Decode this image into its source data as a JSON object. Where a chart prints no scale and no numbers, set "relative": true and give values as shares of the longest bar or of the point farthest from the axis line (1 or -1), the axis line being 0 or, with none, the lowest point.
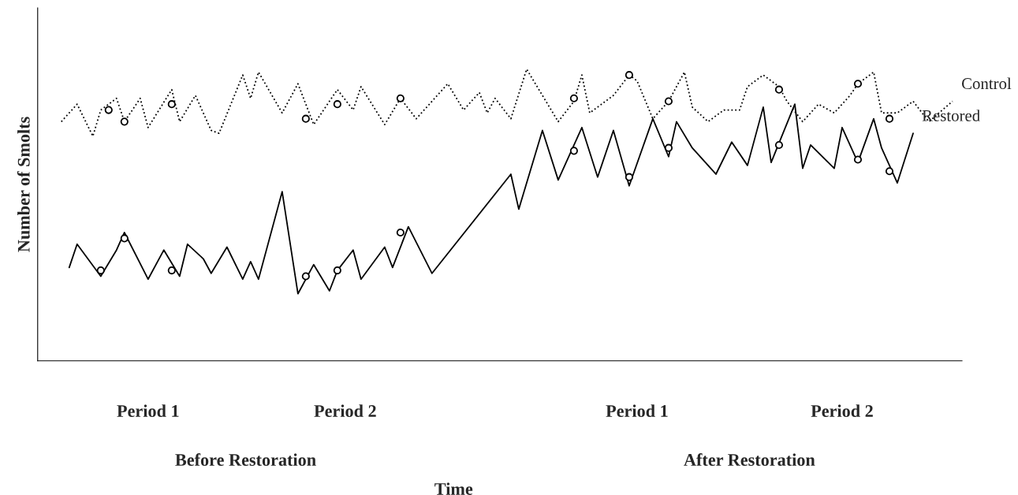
{
  "chart_data": {
    "type": "line",
    "relative": true,
    "xlabel": "Time",
    "ylabel": "Number of Smolts",
    "legend": false,
    "categories": [
      null,
      null,
      null,
      null,
      null,
      null,
      null,
      null,
      null,
      null,
      null,
      null,
      null,
      null,
      "Period 1",
      null,
      null,
      null,
      null,
      null,
      null,
      null,
      null,
      null,
      null,
      null,
      null,
      null,
      null,
      null,
      null,
      null,
      null,
      null,
      null,
      null,
      null,
      null,
      null,
      "Period 2",
      null,
      null,
      null,
      null,
      null,
      null,
      null,
      null,
      null,
      null,
      null,
      null,
      null,
      null,
      null,
      null,
      null,
      null,
      null,
      null,
      null,
      null,
      null,
      null,
      null,
      null,
      null,
      null,
      null,
      null,
      null,
      null,
      null,
      null,
      null,
      null,
      "Period 1",
      null,
      null,
      null,
      null,
      null,
      null,
      null,
      null,
      null,
      null,
      null,
      null,
      null,
      null,
      null,
      null,
      null,
      null,
      null,
      null,
      null,
      null,
      null,
      null,
      null,
      "Period 2",
      null,
      null,
      null,
      null,
      null,
      null,
      null,
      null,
      null,
      null,
      null,
      null,
      null,
      null,
      null
    ],
    "annotations": [
      "Before Restoration",
      "After Restoration"
    ],
    "series": [
      {
        "name": "Control",
        "color": "#000000",
        "line_style": "dotted",
        "marker": "none",
        "values": [
          null,
          null,
          null,
          0.82,
          null,
          0.88,
          null,
          0.77,
          0.86,
          null,
          0.9,
          0.82,
          null,
          0.9,
          0.8,
          null,
          null,
          0.93,
          0.82,
          null,
          0.91,
          null,
          0.79,
          0.78,
          null,
          null,
          0.98,
          0.9,
          0.99,
          null,
          null,
          0.85,
          null,
          0.95,
          null,
          0.81,
          null,
          null,
          0.93,
          null,
          0.86,
          0.94,
          null,
          null,
          0.81,
          null,
          0.9,
          null,
          0.83,
          null,
          null,
          null,
          0.95,
          null,
          0.86,
          null,
          0.92,
          0.85,
          0.9,
          null,
          0.83,
          null,
          1.0,
          null,
          0.91,
          null,
          0.82,
          null,
          0.89,
          0.98,
          0.85,
          null,
          null,
          0.91,
          null,
          0.98,
          0.96,
          null,
          0.83,
          null,
          0.89,
          null,
          0.99,
          0.87,
          null,
          0.82,
          null,
          0.86,
          null,
          0.86,
          0.94,
          null,
          0.98,
          null,
          0.94,
          0.89,
          null,
          0.82,
          null,
          0.88,
          null,
          0.85,
          null,
          0.91,
          0.95,
          null,
          0.99,
          0.85,
          null,
          0.85,
          null,
          0.89,
          null,
          0.82,
          null,
          null,
          0.89,
          null
        ]
      },
      {
        "name": "Restored",
        "color": "#000000",
        "line_style": "solid",
        "marker": "none",
        "values": [
          null,
          null,
          null,
          null,
          0.32,
          0.4,
          null,
          null,
          0.29,
          null,
          0.38,
          0.44,
          null,
          null,
          0.28,
          null,
          0.38,
          null,
          0.29,
          0.4,
          null,
          0.35,
          0.3,
          null,
          0.39,
          null,
          0.28,
          0.34,
          0.28,
          null,
          null,
          0.58,
          null,
          0.23,
          null,
          0.33,
          null,
          0.24,
          0.31,
          null,
          0.38,
          0.28,
          null,
          null,
          0.39,
          0.32,
          null,
          0.46,
          null,
          null,
          0.3,
          null,
          null,
          null,
          null,
          null,
          null,
          null,
          null,
          null,
          0.64,
          0.52,
          null,
          null,
          0.79,
          null,
          0.62,
          null,
          null,
          0.8,
          null,
          0.63,
          null,
          0.79,
          null,
          0.6,
          null,
          null,
          0.83,
          null,
          0.7,
          0.82,
          null,
          0.73,
          null,
          null,
          0.64,
          null,
          0.75,
          null,
          0.67,
          null,
          0.87,
          0.68,
          null,
          null,
          0.88,
          0.66,
          0.74,
          null,
          null,
          0.66,
          0.8,
          null,
          0.68,
          null,
          0.83,
          0.73,
          null,
          0.61,
          null,
          0.78,
          null,
          null,
          null,
          null,
          null,
          null
        ]
      },
      {
        "color": "#000000",
        "type": "scatter",
        "marker": "circle",
        "values": [
          null,
          null,
          null,
          null,
          null,
          null,
          null,
          null,
          null,
          0.86,
          null,
          0.82,
          null,
          null,
          null,
          null,
          null,
          0.88,
          null,
          null,
          null,
          null,
          null,
          null,
          null,
          null,
          null,
          null,
          null,
          null,
          null,
          null,
          null,
          null,
          0.83,
          null,
          null,
          null,
          0.88,
          null,
          null,
          null,
          null,
          null,
          null,
          null,
          0.9,
          null,
          null,
          null,
          null,
          null,
          null,
          null,
          null,
          null,
          null,
          null,
          null,
          null,
          null,
          null,
          null,
          null,
          null,
          null,
          null,
          null,
          0.9,
          null,
          null,
          null,
          null,
          null,
          null,
          0.98,
          null,
          null,
          null,
          null,
          0.89,
          null,
          null,
          null,
          null,
          null,
          null,
          null,
          null,
          null,
          null,
          null,
          null,
          null,
          0.93,
          null,
          null,
          null,
          null,
          null,
          null,
          null,
          null,
          null,
          0.95,
          null,
          null,
          null,
          0.83,
          null,
          null,
          null,
          null,
          null,
          null,
          null,
          null,
          null
        ]
      },
      {
        "color": "#000000",
        "type": "scatter",
        "marker": "circle",
        "values": [
          null,
          null,
          null,
          null,
          null,
          null,
          null,
          null,
          0.31,
          null,
          null,
          0.42,
          null,
          null,
          null,
          null,
          null,
          0.31,
          null,
          null,
          null,
          null,
          null,
          null,
          null,
          null,
          null,
          null,
          null,
          null,
          null,
          null,
          null,
          null,
          0.29,
          null,
          null,
          null,
          0.31,
          null,
          null,
          null,
          null,
          null,
          null,
          null,
          0.44,
          null,
          null,
          null,
          null,
          null,
          null,
          null,
          null,
          null,
          null,
          null,
          null,
          null,
          null,
          null,
          null,
          null,
          null,
          null,
          null,
          null,
          0.72,
          null,
          null,
          null,
          null,
          null,
          null,
          0.63,
          null,
          null,
          null,
          null,
          0.73,
          null,
          null,
          null,
          null,
          null,
          null,
          null,
          null,
          null,
          null,
          null,
          null,
          null,
          0.74,
          null,
          null,
          null,
          null,
          null,
          null,
          null,
          null,
          null,
          0.69,
          null,
          null,
          null,
          0.65,
          null,
          null,
          null,
          null,
          null,
          null,
          null,
          null,
          null
        ]
      }
    ]
  }
}
